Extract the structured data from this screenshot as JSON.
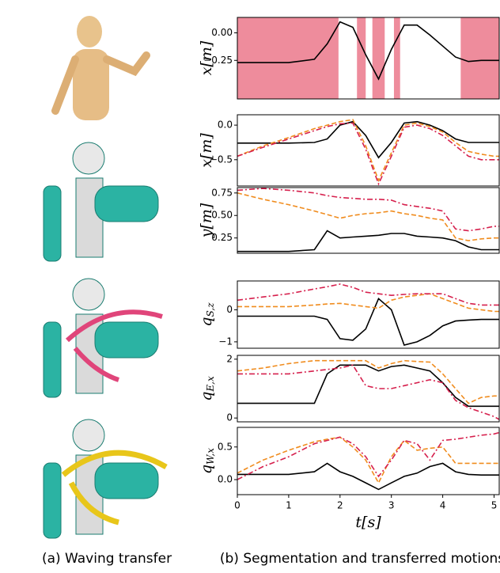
{
  "chart_data": [
    {
      "type": "line",
      "ylabel": "x[m]",
      "xlim": [
        0,
        5.1
      ],
      "ylim": [
        -0.6,
        0.14
      ],
      "yticks": [
        {
          "value": 0,
          "label": "0.00"
        },
        {
          "value": -0.25,
          "label": "−0.25"
        }
      ],
      "segments": [
        [
          0,
          1.97
        ],
        [
          2.33,
          2.5
        ],
        [
          2.63,
          2.87
        ],
        [
          3.05,
          3.17
        ],
        [
          4.35,
          5.1
        ]
      ],
      "segment_color": "#ee8c9c",
      "x": [
        0,
        0.5,
        1,
        1.5,
        1.75,
        2,
        2.25,
        2.5,
        2.75,
        3,
        3.25,
        3.5,
        3.75,
        4,
        4.25,
        4.5,
        4.75,
        5,
        5.1
      ],
      "series": [
        {
          "color": "#000000",
          "style": "solid",
          "values": [
            -0.27,
            -0.27,
            -0.27,
            -0.24,
            -0.1,
            0.1,
            0.05,
            -0.2,
            -0.42,
            -0.15,
            0.07,
            0.07,
            -0.02,
            -0.12,
            -0.22,
            -0.26,
            -0.25,
            -0.25,
            -0.25
          ]
        }
      ]
    },
    {
      "type": "line",
      "ylabel": "x[m]",
      "xlim": [
        0,
        5.1
      ],
      "ylim": [
        -0.88,
        0.15
      ],
      "yticks": [
        {
          "value": 0,
          "label": "0.0"
        },
        {
          "value": -0.5,
          "label": "−0.5"
        }
      ],
      "x": [
        0,
        0.5,
        1,
        1.5,
        1.75,
        2,
        2.25,
        2.5,
        2.75,
        3,
        3.25,
        3.5,
        3.75,
        4,
        4.25,
        4.5,
        4.75,
        5,
        5.1
      ],
      "series": [
        {
          "color": "#000000",
          "style": "solid",
          "values": [
            -0.26,
            -0.26,
            -0.26,
            -0.25,
            -0.2,
            0.0,
            0.05,
            -0.15,
            -0.47,
            -0.25,
            0.03,
            0.05,
            0.0,
            -0.08,
            -0.2,
            -0.25,
            -0.25,
            -0.25,
            -0.25
          ]
        },
        {
          "color": "#f08c1e",
          "style": "dashed",
          "values": [
            -0.45,
            -0.3,
            -0.18,
            -0.05,
            0.0,
            0.05,
            0.08,
            -0.3,
            -0.8,
            -0.4,
            0.0,
            0.03,
            -0.02,
            -0.1,
            -0.25,
            -0.38,
            -0.42,
            -0.45,
            -0.45
          ]
        },
        {
          "color": "#d6204d",
          "style": "dashdot",
          "values": [
            -0.45,
            -0.32,
            -0.2,
            -0.08,
            -0.02,
            0.02,
            0.03,
            -0.35,
            -0.85,
            -0.45,
            -0.03,
            0.0,
            -0.05,
            -0.15,
            -0.3,
            -0.45,
            -0.5,
            -0.5,
            -0.5
          ]
        }
      ]
    },
    {
      "type": "line",
      "ylabel": "y[m]",
      "xlim": [
        0,
        5.1
      ],
      "ylim": [
        0.08,
        0.81
      ],
      "yticks": [
        0.25,
        {
          "value": 0.5,
          "label": "0.50"
        },
        0.75
      ],
      "x": [
        0,
        0.5,
        1,
        1.5,
        1.75,
        2,
        2.25,
        2.5,
        2.75,
        3,
        3.25,
        3.5,
        3.75,
        4,
        4.25,
        4.5,
        4.75,
        5,
        5.1
      ],
      "series": [
        {
          "color": "#000000",
          "style": "solid",
          "values": [
            0.1,
            0.1,
            0.1,
            0.12,
            0.33,
            0.25,
            0.26,
            0.27,
            0.28,
            0.3,
            0.3,
            0.27,
            0.26,
            0.25,
            0.22,
            0.15,
            0.12,
            0.12,
            0.12
          ]
        },
        {
          "color": "#f08c1e",
          "style": "dashed",
          "values": [
            0.75,
            0.68,
            0.62,
            0.55,
            0.51,
            0.47,
            0.5,
            0.52,
            0.53,
            0.55,
            0.52,
            0.5,
            0.47,
            0.45,
            0.25,
            0.22,
            0.24,
            0.25,
            0.25
          ]
        },
        {
          "color": "#d6204d",
          "style": "dashdot",
          "values": [
            0.78,
            0.8,
            0.78,
            0.75,
            0.72,
            0.7,
            0.69,
            0.68,
            0.68,
            0.67,
            0.62,
            0.6,
            0.58,
            0.55,
            0.35,
            0.33,
            0.35,
            0.38,
            0.38
          ]
        }
      ]
    },
    {
      "type": "line",
      "ylabel": "q",
      "ylabel_sub": "S,z",
      "xlim": [
        0,
        5.1
      ],
      "ylim": [
        -1.2,
        0.9
      ],
      "yticks": [
        {
          "value": -1,
          "label": "−1"
        },
        0
      ],
      "x": [
        0,
        0.5,
        1,
        1.5,
        1.75,
        2,
        2.25,
        2.5,
        2.75,
        3,
        3.25,
        3.5,
        3.75,
        4,
        4.25,
        4.5,
        4.75,
        5,
        5.1
      ],
      "series": [
        {
          "color": "#000000",
          "style": "solid",
          "values": [
            -0.2,
            -0.2,
            -0.2,
            -0.2,
            -0.3,
            -0.9,
            -0.95,
            -0.6,
            0.35,
            0.0,
            -1.1,
            -1.0,
            -0.8,
            -0.5,
            -0.35,
            -0.32,
            -0.3,
            -0.3,
            -0.3
          ]
        },
        {
          "color": "#f08c1e",
          "style": "dashed",
          "values": [
            0.1,
            0.1,
            0.1,
            0.15,
            0.18,
            0.2,
            0.15,
            0.1,
            0.05,
            0.3,
            0.4,
            0.45,
            0.5,
            0.35,
            0.2,
            0.05,
            0.0,
            -0.05,
            -0.05
          ]
        },
        {
          "color": "#d6204d",
          "style": "dashdot",
          "values": [
            0.3,
            0.4,
            0.5,
            0.65,
            0.72,
            0.8,
            0.7,
            0.55,
            0.5,
            0.45,
            0.48,
            0.5,
            0.5,
            0.5,
            0.35,
            0.2,
            0.15,
            0.15,
            0.15
          ]
        }
      ]
    },
    {
      "type": "line",
      "ylabel": "q",
      "ylabel_sub": "E,x",
      "xlim": [
        0,
        5.1
      ],
      "ylim": [
        -0.13,
        2.13
      ],
      "yticks": [
        0,
        2
      ],
      "x": [
        0,
        0.5,
        1,
        1.5,
        1.75,
        2,
        2.25,
        2.5,
        2.75,
        3,
        3.25,
        3.5,
        3.75,
        4,
        4.25,
        4.5,
        4.75,
        5,
        5.1
      ],
      "series": [
        {
          "color": "#000000",
          "style": "solid",
          "values": [
            0.5,
            0.5,
            0.5,
            0.5,
            1.5,
            1.8,
            1.8,
            1.8,
            1.6,
            1.75,
            1.8,
            1.7,
            1.6,
            1.2,
            0.7,
            0.4,
            0.4,
            0.4,
            0.4
          ]
        },
        {
          "color": "#f08c1e",
          "style": "dashed",
          "values": [
            1.6,
            1.7,
            1.85,
            1.95,
            1.95,
            1.95,
            1.95,
            1.95,
            1.7,
            1.85,
            1.95,
            1.92,
            1.9,
            1.5,
            1.0,
            0.5,
            0.7,
            0.75,
            0.75
          ]
        },
        {
          "color": "#d6204d",
          "style": "dashdot",
          "values": [
            1.5,
            1.5,
            1.5,
            1.6,
            1.65,
            1.7,
            1.8,
            1.1,
            1.0,
            1.0,
            1.1,
            1.2,
            1.3,
            1.2,
            0.6,
            0.35,
            0.2,
            0.05,
            -0.05
          ]
        }
      ]
    },
    {
      "type": "line",
      "ylabel": "q",
      "ylabel_sub": "W,x",
      "xlabel": "t[s]",
      "xlim": [
        0,
        5.1
      ],
      "ylim": [
        -0.23,
        0.8
      ],
      "yticks": [
        {
          "value": 0,
          "label": "0.0"
        },
        0.5
      ],
      "xticks": [
        0,
        1,
        2,
        3,
        4,
        5
      ],
      "x": [
        0,
        0.5,
        1,
        1.5,
        1.75,
        2,
        2.25,
        2.5,
        2.75,
        3,
        3.25,
        3.5,
        3.75,
        4,
        4.25,
        4.5,
        4.75,
        5,
        5.1
      ],
      "series": [
        {
          "color": "#000000",
          "style": "solid",
          "values": [
            0.08,
            0.08,
            0.08,
            0.12,
            0.25,
            0.12,
            0.05,
            -0.05,
            -0.15,
            -0.05,
            0.05,
            0.1,
            0.2,
            0.25,
            0.12,
            0.08,
            0.07,
            0.07,
            0.07
          ]
        },
        {
          "color": "#f08c1e",
          "style": "dashed",
          "values": [
            0.1,
            0.3,
            0.45,
            0.58,
            0.62,
            0.65,
            0.5,
            0.3,
            -0.05,
            0.35,
            0.6,
            0.45,
            0.48,
            0.5,
            0.25,
            0.25,
            0.25,
            0.25,
            0.25
          ]
        },
        {
          "color": "#d6204d",
          "style": "dashdot",
          "values": [
            0.0,
            0.2,
            0.35,
            0.55,
            0.6,
            0.65,
            0.55,
            0.35,
            0.05,
            0.3,
            0.6,
            0.55,
            0.3,
            0.6,
            0.62,
            0.65,
            0.68,
            0.7,
            0.72
          ]
        }
      ]
    }
  ],
  "captions": [
    "(a) Waving transfer",
    "(b) Segmentation and transferred motions"
  ]
}
